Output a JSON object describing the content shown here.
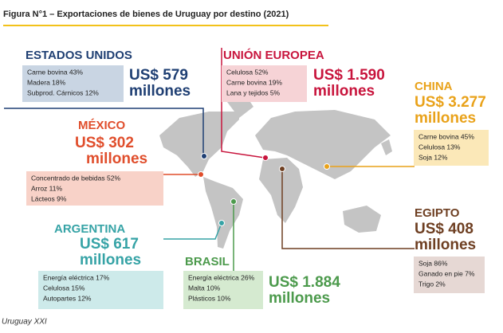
{
  "figure": {
    "title": "Figura N°1 – Exportaciones de bienes de Uruguay por destino (2021)",
    "source": "Uruguay XXI",
    "regions": [
      {
        "name": "ESTADOS UNIDOS",
        "amount": "US$ 579",
        "unit": "millones",
        "color": "#1f3f73",
        "box_color": "#c9d5e3",
        "items": [
          "Carne bovina 43%",
          "Madera 18%",
          "Subprod. Cárnicos 12%"
        ]
      },
      {
        "name": "UNIÓN EUROPEA",
        "amount": "US$ 1.590",
        "unit": "millones",
        "color": "#c8153d",
        "box_color": "#f6d3d6",
        "items": [
          "Celulosa 52%",
          "Carne bovina 19%",
          "Lana y tejidos 5%"
        ]
      },
      {
        "name": "CHINA",
        "amount": "US$ 3.277",
        "unit": "millones",
        "color": "#e9a21a",
        "box_color": "#fbe8b8",
        "items": [
          "Carne bovina 45%",
          "Celulosa 13%",
          "Soja 12%"
        ]
      },
      {
        "name": "MÉXICO",
        "amount": "US$ 302",
        "unit": "millones",
        "color": "#e04e2c",
        "box_color": "#f8d2c8",
        "items": [
          "Concentrado de bebidas 52%",
          "Arroz 11%",
          "Lácteos 9%"
        ]
      },
      {
        "name": "ARGENTINA",
        "amount": "US$ 617",
        "unit": "millones",
        "color": "#36a3a6",
        "box_color": "#cdeaea",
        "items": [
          "Energía eléctrica 17%",
          "Celulosa 15%",
          "Autopartes 12%"
        ]
      },
      {
        "name": "BRASIL",
        "amount": "US$ 1.884",
        "unit": "millones",
        "color": "#4c9a4c",
        "box_color": "#d5ead0",
        "items": [
          "Energía eléctrica 26%",
          "Malta 10%",
          "Plásticos 10%"
        ]
      },
      {
        "name": "EGIPTO",
        "amount": "US$ 408",
        "unit": "millones",
        "color": "#6e3f22",
        "box_color": "#e6d8d4",
        "items": [
          "Soja 86%",
          "Ganado en pie 7%",
          "Trigo 2%"
        ]
      }
    ]
  }
}
